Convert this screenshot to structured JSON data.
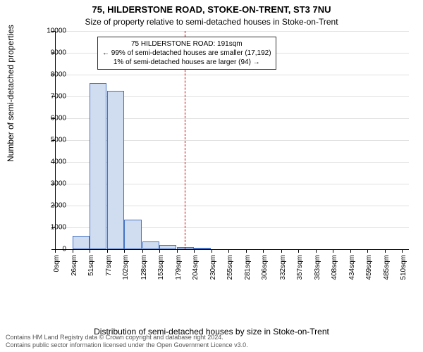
{
  "title": "75, HILDERSTONE ROAD, STOKE-ON-TRENT, ST3 7NU",
  "subtitle": "Size of property relative to semi-detached houses in Stoke-on-Trent",
  "x_label": "Distribution of semi-detached houses by size in Stoke-on-Trent",
  "y_label": "Number of semi-detached properties",
  "attribution_line1": "Contains HM Land Registry data © Crown copyright and database right 2024.",
  "attribution_line2": "Contains public sector information licensed under the Open Government Licence v3.0.",
  "chart": {
    "type": "histogram",
    "background_color": "#ffffff",
    "grid_color": "#e0e0e0",
    "bar_fill": "#d0dcf0",
    "bar_stroke": "#4472c4",
    "reference_line_color": "#cc0000",
    "reference_x": 191,
    "xlim": [
      0,
      520
    ],
    "ylim": [
      0,
      10000
    ],
    "ytick_step": 1000,
    "bin_width": 26,
    "x_ticks": [
      0,
      26,
      51,
      77,
      102,
      128,
      153,
      179,
      204,
      230,
      255,
      281,
      306,
      332,
      357,
      383,
      408,
      434,
      459,
      485,
      510
    ],
    "x_tick_unit": "sqm",
    "bars": [
      {
        "x": 0,
        "count": 0
      },
      {
        "x": 26,
        "count": 600
      },
      {
        "x": 51,
        "count": 7600
      },
      {
        "x": 77,
        "count": 7250
      },
      {
        "x": 102,
        "count": 1350
      },
      {
        "x": 128,
        "count": 350
      },
      {
        "x": 153,
        "count": 200
      },
      {
        "x": 179,
        "count": 100
      },
      {
        "x": 204,
        "count": 60
      },
      {
        "x": 230,
        "count": 0
      },
      {
        "x": 255,
        "count": 0
      },
      {
        "x": 281,
        "count": 0
      },
      {
        "x": 306,
        "count": 0
      },
      {
        "x": 332,
        "count": 0
      },
      {
        "x": 357,
        "count": 0
      },
      {
        "x": 383,
        "count": 0
      },
      {
        "x": 408,
        "count": 0
      },
      {
        "x": 434,
        "count": 0
      },
      {
        "x": 459,
        "count": 0
      },
      {
        "x": 485,
        "count": 0
      }
    ]
  },
  "annotation": {
    "line1": "75 HILDERSTONE ROAD: 191sqm",
    "line2": "← 99% of semi-detached houses are smaller (17,192)",
    "line3": "1% of semi-detached houses are larger (94) →"
  }
}
